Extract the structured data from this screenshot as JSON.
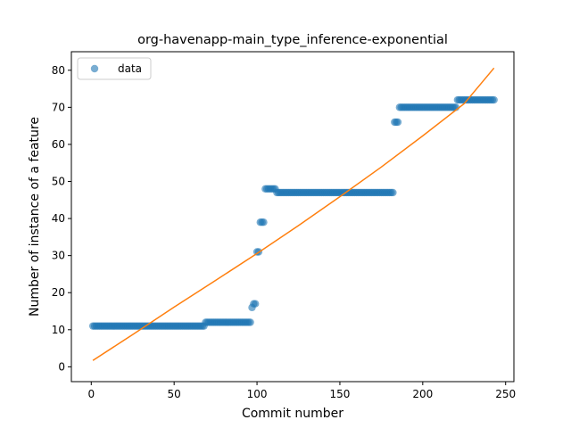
{
  "chart_data": {
    "type": "scatter",
    "title": "org-havenapp-main_type_inference-exponential",
    "xlabel": "Commit number",
    "ylabel": "Number of instance of a feature",
    "xlim": [
      -12,
      255
    ],
    "ylim": [
      -4,
      85
    ],
    "xticks": [
      0,
      50,
      100,
      150,
      200,
      250
    ],
    "yticks": [
      0,
      10,
      20,
      30,
      40,
      50,
      60,
      70,
      80
    ],
    "grid": false,
    "legend": {
      "position": "top-left",
      "entries": [
        "data"
      ]
    },
    "colors": {
      "data": "#1f77b4",
      "fit": "#ff7f0e"
    },
    "series": [
      {
        "name": "data",
        "kind": "points",
        "segments": [
          {
            "x_start": 1,
            "x_end": 68,
            "y": 11
          },
          {
            "x_start": 69,
            "x_end": 96,
            "y": 12
          },
          {
            "x_start": 97,
            "x_end": 97,
            "y": 16
          },
          {
            "x_start": 98,
            "x_end": 99,
            "y": 17
          },
          {
            "x_start": 100,
            "x_end": 101,
            "y": 31
          },
          {
            "x_start": 102,
            "x_end": 104,
            "y": 39
          },
          {
            "x_start": 105,
            "x_end": 111,
            "y": 48
          },
          {
            "x_start": 112,
            "x_end": 182,
            "y": 47
          },
          {
            "x_start": 183,
            "x_end": 185,
            "y": 66
          },
          {
            "x_start": 186,
            "x_end": 220,
            "y": 70
          },
          {
            "x_start": 221,
            "x_end": 243,
            "y": 72
          }
        ]
      },
      {
        "name": "",
        "kind": "fit-line",
        "x": [
          1,
          25,
          50,
          75,
          100,
          125,
          150,
          175,
          200,
          225,
          243
        ],
        "y": [
          1.7,
          8.7,
          16.1,
          23.3,
          30.6,
          38.1,
          45.9,
          53.9,
          62.3,
          71.0,
          80.6
        ]
      }
    ]
  }
}
